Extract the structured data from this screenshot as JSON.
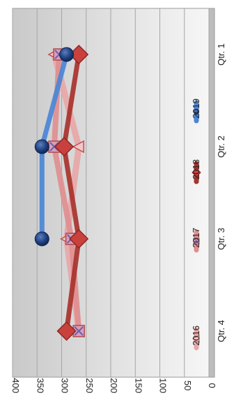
{
  "chart_data": {
    "type": "line",
    "orientation": "rotated 90° clockwise",
    "categories": [
      "Qtr. 1",
      "Qtr. 2",
      "Qtr. 3",
      "Qtr. 4"
    ],
    "ylim": [
      0,
      400
    ],
    "yticks": [
      0,
      50,
      100,
      150,
      200,
      250,
      300,
      350,
      400
    ],
    "grid": true,
    "legend_position": "bottom",
    "series": [
      {
        "name": "2016",
        "values": [
          315,
          265,
          290,
          265
        ],
        "color": "#E8A7A8",
        "marker": "triangle"
      },
      {
        "name": "2017",
        "values": [
          305,
          315,
          280,
          265
        ],
        "color": "#E08E90",
        "marker": "square-x"
      },
      {
        "name": "2018",
        "values": [
          265,
          295,
          265,
          290
        ],
        "color": "#A8322D",
        "marker": "diamond"
      },
      {
        "name": "2019",
        "values": [
          290,
          340,
          340,
          null
        ],
        "color": "#4A86D6",
        "marker": "circle"
      }
    ]
  }
}
